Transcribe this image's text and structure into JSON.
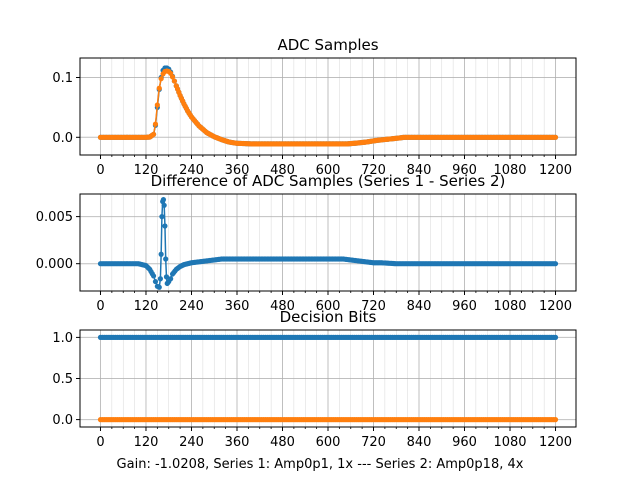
{
  "figure": {
    "footer": "Gain: -1.0208, Series 1: Amp0p1, 1x --- Series 2: Amp0p18, 4x",
    "colors": {
      "series1": "#1f77b4",
      "series2": "#ff7f0e",
      "grid": "#b0b0b0",
      "axis": "#000000"
    }
  },
  "chart_data": [
    {
      "type": "line",
      "title": "ADC Samples",
      "xlabel": "",
      "ylabel": "",
      "xlim": [
        -54,
        1254
      ],
      "ylim": [
        -0.0296,
        0.1326
      ],
      "grid": true,
      "xticks": [
        0,
        120,
        240,
        360,
        480,
        600,
        720,
        840,
        960,
        1080,
        1200
      ],
      "xtick_labels": [
        "0",
        "120",
        "240",
        "360",
        "480",
        "600",
        "720",
        "840",
        "960",
        "1080",
        "1200"
      ],
      "yticks": [
        0.0,
        0.1
      ],
      "ytick_labels": [
        "0.0",
        "0.1"
      ],
      "series": [
        {
          "name": "Series 1",
          "color": "#1f77b4",
          "marker": "circle",
          "x": [
            0,
            20,
            40,
            60,
            80,
            100,
            120,
            130,
            140,
            145,
            150,
            155,
            160,
            165,
            170,
            175,
            180,
            185,
            190,
            195,
            200,
            210,
            220,
            230,
            240,
            260,
            280,
            300,
            320,
            340,
            360,
            400,
            440,
            480,
            520,
            560,
            600,
            630,
            650,
            670,
            700,
            730,
            760,
            790,
            800,
            820,
            840,
            900,
            960,
            1020,
            1080,
            1140,
            1200
          ],
          "values": [
            0.0,
            0.0,
            0.0,
            0.0,
            0.0,
            0.0,
            0.0,
            0.0005,
            0.005,
            0.02,
            0.05,
            0.08,
            0.1,
            0.112,
            0.116,
            0.116,
            0.114,
            0.109,
            0.102,
            0.094,
            0.086,
            0.07,
            0.056,
            0.044,
            0.034,
            0.019,
            0.008,
            0.001,
            -0.004,
            -0.008,
            -0.01,
            -0.011,
            -0.011,
            -0.011,
            -0.011,
            -0.011,
            -0.011,
            -0.011,
            -0.011,
            -0.01,
            -0.008,
            -0.005,
            -0.003,
            -0.001,
            0.0,
            0.0,
            0.0,
            0.0,
            0.0,
            0.0,
            0.0,
            0.0,
            0.0
          ]
        },
        {
          "name": "Series 2",
          "color": "#ff7f0e",
          "marker": "circle",
          "x": [
            0,
            20,
            40,
            60,
            80,
            100,
            120,
            130,
            140,
            145,
            150,
            155,
            160,
            165,
            170,
            175,
            180,
            185,
            190,
            195,
            200,
            210,
            220,
            230,
            240,
            260,
            280,
            300,
            320,
            340,
            360,
            400,
            440,
            480,
            520,
            560,
            600,
            630,
            650,
            670,
            700,
            730,
            760,
            790,
            800,
            820,
            840,
            900,
            960,
            1020,
            1080,
            1140,
            1200
          ],
          "values": [
            0.0,
            0.0,
            0.0,
            0.0,
            0.0,
            0.0,
            0.0,
            0.0005,
            0.005,
            0.022,
            0.054,
            0.082,
            0.098,
            0.106,
            0.11,
            0.111,
            0.11,
            0.107,
            0.101,
            0.094,
            0.086,
            0.07,
            0.056,
            0.044,
            0.034,
            0.019,
            0.008,
            0.001,
            -0.004,
            -0.008,
            -0.01,
            -0.011,
            -0.011,
            -0.011,
            -0.011,
            -0.011,
            -0.011,
            -0.011,
            -0.011,
            -0.01,
            -0.008,
            -0.005,
            -0.003,
            -0.001,
            0.0,
            0.0,
            0.0,
            0.0,
            0.0,
            0.0,
            0.0,
            0.0,
            0.0
          ]
        }
      ]
    },
    {
      "type": "line",
      "title": "Difference of ADC Samples (Series 1 - Series 2)",
      "xlabel": "",
      "ylabel": "",
      "xlim": [
        -54,
        1254
      ],
      "ylim": [
        -0.0029,
        0.0074
      ],
      "grid": true,
      "xticks": [
        0,
        120,
        240,
        360,
        480,
        600,
        720,
        840,
        960,
        1080,
        1200
      ],
      "xtick_labels": [
        "0",
        "120",
        "240",
        "360",
        "480",
        "600",
        "720",
        "840",
        "960",
        "1080",
        "1200"
      ],
      "yticks": [
        0.0,
        0.005
      ],
      "ytick_labels": [
        "0.000",
        "0.005"
      ],
      "series": [
        {
          "name": "Series 1 - Series 2",
          "color": "#1f77b4",
          "marker": "circle",
          "x": [
            0,
            40,
            80,
            100,
            110,
            120,
            130,
            140,
            145,
            150,
            155,
            158,
            160,
            162,
            164,
            166,
            168,
            170,
            172,
            174,
            176,
            178,
            180,
            185,
            190,
            200,
            210,
            220,
            240,
            260,
            280,
            300,
            320,
            340,
            360,
            400,
            440,
            480,
            520,
            560,
            600,
            640,
            660,
            680,
            700,
            720,
            740,
            780,
            820,
            900,
            960,
            1020,
            1080,
            1140,
            1200
          ],
          "values": [
            0.0,
            0.0,
            0.0,
            0.0,
            -0.0001,
            -0.0002,
            -0.0006,
            -0.0013,
            -0.0019,
            -0.0024,
            -0.0025,
            -0.0016,
            0.001,
            0.005,
            0.0066,
            0.0068,
            0.0062,
            0.004,
            0.0005,
            -0.0014,
            -0.0021,
            -0.002,
            -0.0019,
            -0.0016,
            -0.0011,
            -0.0006,
            -0.0003,
            -0.0001,
            0.0001,
            0.0002,
            0.0003,
            0.0004,
            0.0005,
            0.0005,
            0.0005,
            0.0005,
            0.0005,
            0.0005,
            0.0005,
            0.0005,
            0.0005,
            0.0005,
            0.0004,
            0.0003,
            0.0002,
            0.0001,
            0.0001,
            0.0,
            0.0,
            0.0,
            0.0,
            0.0,
            0.0,
            0.0,
            0.0
          ]
        }
      ]
    },
    {
      "type": "scatter",
      "title": "Decision Bits",
      "xlabel": "Gain: -1.0208, Series 1: Amp0p1, 1x --- Series 2: Amp0p18, 4x",
      "ylabel": "",
      "xlim": [
        -54,
        1254
      ],
      "ylim": [
        -0.09,
        1.09
      ],
      "grid": true,
      "xticks": [
        0,
        120,
        240,
        360,
        480,
        600,
        720,
        840,
        960,
        1080,
        1200
      ],
      "xtick_labels": [
        "0",
        "120",
        "240",
        "360",
        "480",
        "600",
        "720",
        "840",
        "960",
        "1080",
        "1200"
      ],
      "yticks": [
        0.0,
        0.5,
        1.0
      ],
      "ytick_labels": [
        "0.0",
        "0.5",
        "1.0"
      ],
      "series": [
        {
          "name": "Series 1",
          "color": "#1f77b4",
          "marker": "circle",
          "x_range": [
            0,
            1200
          ],
          "constant_value": 1.0
        },
        {
          "name": "Series 2",
          "color": "#ff7f0e",
          "marker": "circle",
          "x_range": [
            0,
            1200
          ],
          "constant_value": 0.0
        }
      ]
    }
  ]
}
